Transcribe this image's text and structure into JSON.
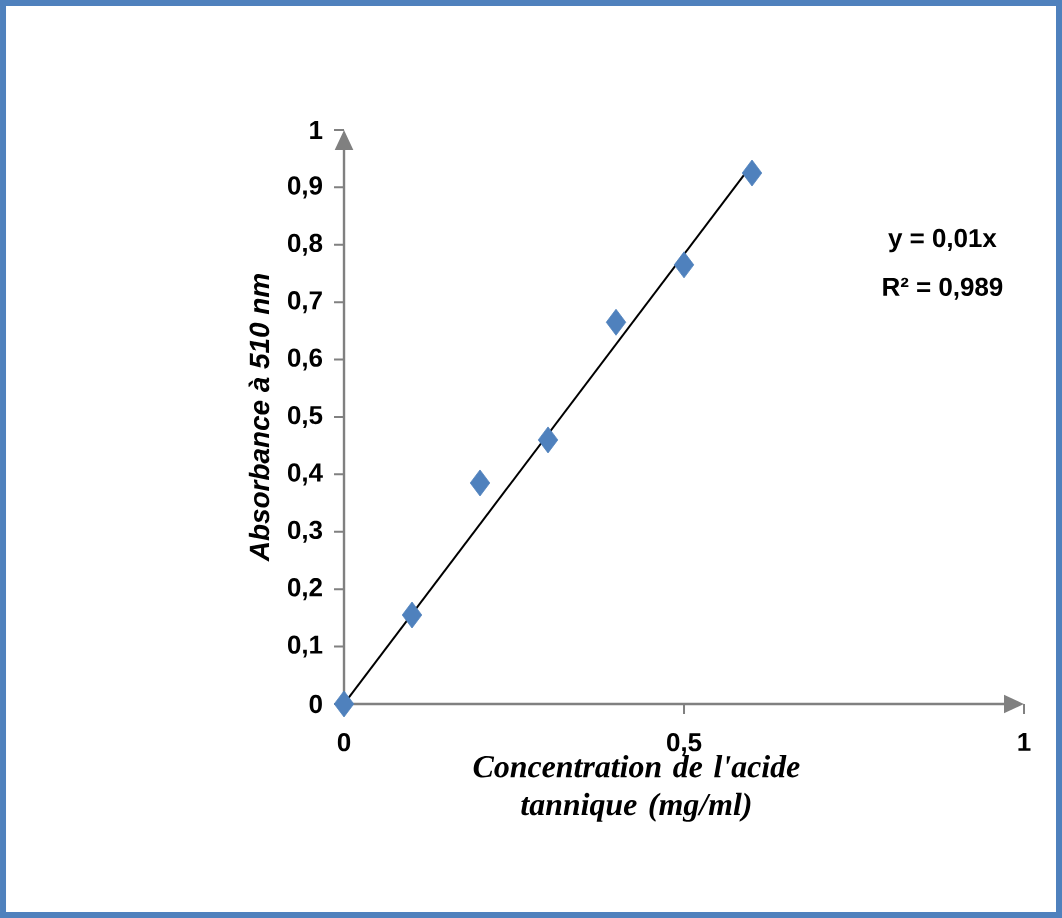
{
  "chart_data": {
    "type": "scatter",
    "xlabel": "Concentration de l'acide tannique (mg/ml)",
    "ylabel": "Absorbance à 510 nm",
    "x": [
      0,
      0.1,
      0.2,
      0.3,
      0.4,
      0.5,
      0.6
    ],
    "series": [
      {
        "color": "#4f81bd",
        "marker": "diamond",
        "values": [
          0,
          0.155,
          0.385,
          0.46,
          0.665,
          0.765,
          0.925
        ]
      },
      {
        "type": "line",
        "color": "#000000",
        "x": [
          0,
          0.6
        ],
        "values": [
          0,
          0.94
        ]
      }
    ],
    "xlim": [
      0,
      1
    ],
    "ylim": [
      0,
      1
    ],
    "xticks": [
      0,
      {
        "value": 0.5,
        "label": "0,5"
      },
      1
    ],
    "yticks": [
      0,
      {
        "value": 0.1,
        "label": "0,1"
      },
      {
        "value": 0.2,
        "label": "0,2"
      },
      {
        "value": 0.3,
        "label": "0,3"
      },
      {
        "value": 0.4,
        "label": "0,4"
      },
      {
        "value": 0.5,
        "label": "0,5"
      },
      {
        "value": 0.6,
        "label": "0,6"
      },
      {
        "value": 0.7,
        "label": "0,7"
      },
      {
        "value": 0.8,
        "label": "0,8"
      },
      {
        "value": 0.9,
        "label": "0,9"
      },
      1
    ],
    "annotations": [
      "y = 0,01x",
      "R² = 0,989"
    ],
    "grid": false
  }
}
